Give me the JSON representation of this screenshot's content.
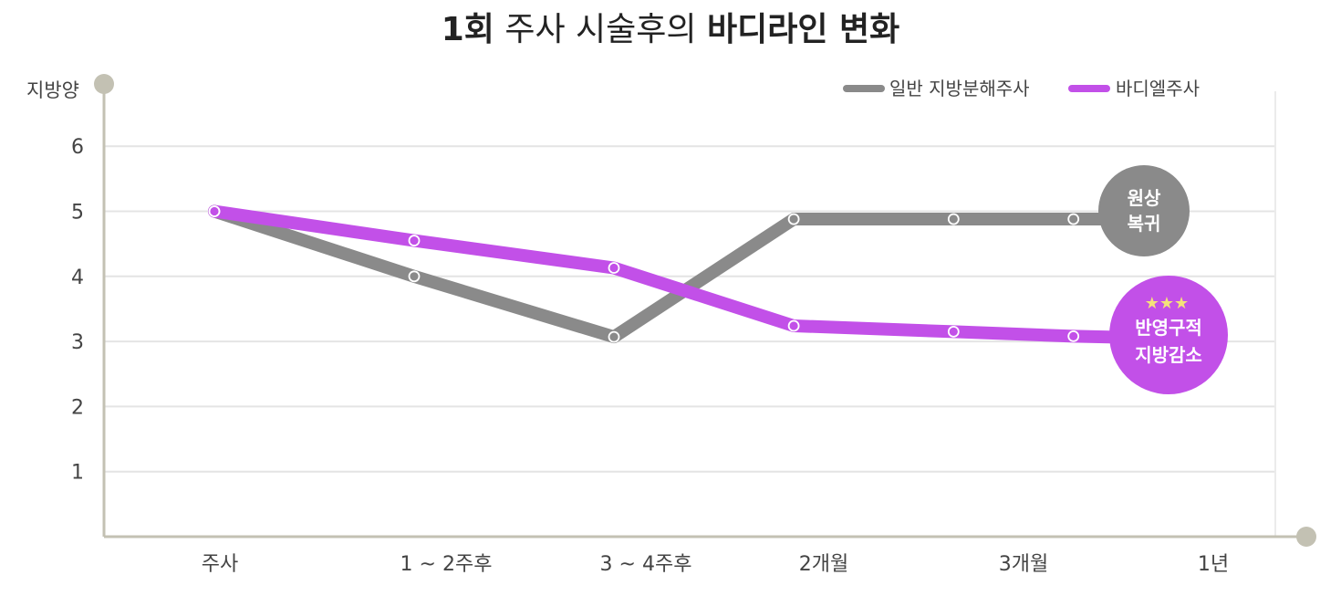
{
  "chart_data": {
    "type": "line",
    "title": {
      "parts": [
        {
          "text": "1회",
          "bold": true
        },
        {
          "text": " 주사 시술후의 ",
          "bold": false
        },
        {
          "text": "바디라인 변화",
          "bold": true
        }
      ]
    },
    "ylabel": "지방양",
    "ylim": [
      0,
      6.5
    ],
    "yticks": [
      "1",
      "2",
      "3",
      "4",
      "5",
      "6"
    ],
    "grid": true,
    "legend_position": "top-right",
    "categories": [
      "주사",
      "1 ~ 2주후",
      "3 ~ 4주후",
      "2개월",
      "3개월",
      "1년"
    ],
    "series": [
      {
        "name": "일반 지방분해주사",
        "color": "#8a8a8a",
        "points": [
          {
            "x": 0,
            "y": 5.0
          },
          {
            "x": 1,
            "y": 4.0
          },
          {
            "x": 2,
            "y": 3.07
          },
          {
            "x": 2.9,
            "y": 4.88
          },
          {
            "x": 3.7,
            "y": 4.88
          },
          {
            "x": 4.3,
            "y": 4.88
          }
        ],
        "end_label": [
          "원상",
          "복귀"
        ]
      },
      {
        "name": "바디엘주사",
        "color": "#c250e8",
        "points": [
          {
            "x": 0,
            "y": 5.0
          },
          {
            "x": 1,
            "y": 4.55
          },
          {
            "x": 2,
            "y": 4.13
          },
          {
            "x": 2.9,
            "y": 3.24
          },
          {
            "x": 3.7,
            "y": 3.15
          },
          {
            "x": 4.3,
            "y": 3.08
          }
        ],
        "end_label": [
          "반영구적",
          "지방감소"
        ],
        "end_label_stars": "★★★"
      }
    ]
  }
}
